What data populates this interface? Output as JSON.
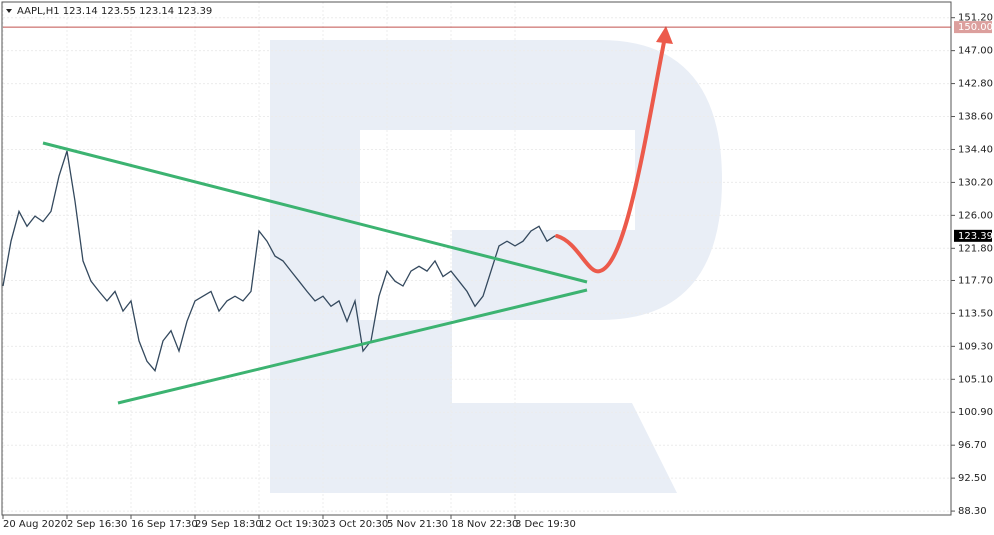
{
  "chart_data": {
    "type": "line",
    "header": "AAPL,H1  123.14 123.55 123.14 123.39",
    "x": [
      0,
      2,
      4,
      6,
      8,
      10,
      12,
      14,
      16,
      18,
      20,
      22,
      24,
      26,
      28,
      30,
      32,
      34,
      36,
      38,
      40,
      42,
      44,
      46,
      48,
      50,
      52,
      54,
      56,
      58,
      60,
      62,
      64,
      66,
      68,
      70,
      72,
      74,
      76,
      78,
      80,
      82,
      84,
      86,
      88,
      90,
      92,
      94,
      96,
      98,
      100,
      102,
      104,
      106,
      108,
      110,
      112,
      114,
      116,
      118,
      120,
      122,
      124,
      126,
      128,
      130,
      132,
      134,
      136,
      138
    ],
    "series": [
      {
        "color": "#34495e",
        "values": [
          117.0,
          122.7,
          126.5,
          124.6,
          125.9,
          125.2,
          126.5,
          131.0,
          134.2,
          127.8,
          120.2,
          117.6,
          116.3,
          115.1,
          116.3,
          113.8,
          115.1,
          110.0,
          107.4,
          106.2,
          110.0,
          111.3,
          108.7,
          112.5,
          115.1,
          115.7,
          116.3,
          113.8,
          115.1,
          115.7,
          115.1,
          116.3,
          124.0,
          122.7,
          120.8,
          120.2,
          118.9,
          117.6,
          116.3,
          115.1,
          115.7,
          114.4,
          115.1,
          112.5,
          115.1,
          108.7,
          110.0,
          115.7,
          118.9,
          117.6,
          117.0,
          118.9,
          119.5,
          118.9,
          120.2,
          118.2,
          118.9,
          117.6,
          116.3,
          114.4,
          115.7,
          118.9,
          122.1,
          122.7,
          122.1,
          122.7,
          124.0,
          124.6,
          122.7,
          123.4
        ]
      }
    ],
    "xlim": [
      0,
      237
    ],
    "ylim": [
      87.8,
      153.2
    ],
    "xticks": [
      {
        "value": 0,
        "label": "20 Aug 2020"
      },
      {
        "value": 16,
        "label": "2 Sep 16:30"
      },
      {
        "value": 32,
        "label": "16 Sep 17:30"
      },
      {
        "value": 48,
        "label": "29 Sep 18:30"
      },
      {
        "value": 64,
        "label": "12 Oct 19:30"
      },
      {
        "value": 80,
        "label": "23 Oct 20:30"
      },
      {
        "value": 96,
        "label": "5 Nov 21:30"
      },
      {
        "value": 112,
        "label": "18 Nov 22:30"
      },
      {
        "value": 128,
        "label": "3 Dec 19:30"
      }
    ],
    "yticks": [
      {
        "value": 151.2,
        "label": "151.20"
      },
      {
        "value": 147,
        "label": "147.00"
      },
      {
        "value": 142.8,
        "label": "142.80"
      },
      {
        "value": 138.6,
        "label": "138.60"
      },
      {
        "value": 134.4,
        "label": "134.40"
      },
      {
        "value": 130.2,
        "label": "130.20"
      },
      {
        "value": 126,
        "label": "126.00"
      },
      {
        "value": 121.8,
        "label": "121.80"
      },
      {
        "value": 117.7,
        "label": "117.70"
      },
      {
        "value": 113.5,
        "label": "113.50"
      },
      {
        "value": 109.3,
        "label": "109.30"
      },
      {
        "value": 105.1,
        "label": "105.10"
      },
      {
        "value": 100.9,
        "label": "100.90"
      },
      {
        "value": 96.7,
        "label": "96.70"
      },
      {
        "value": 92.5,
        "label": "92.50"
      },
      {
        "value": 88.3,
        "label": "88.30"
      }
    ],
    "grid": true,
    "level": {
      "value": 150,
      "label": "150.00",
      "color": "#c0504d"
    },
    "last_price": {
      "value": 123.39,
      "label": "123.39"
    }
  }
}
